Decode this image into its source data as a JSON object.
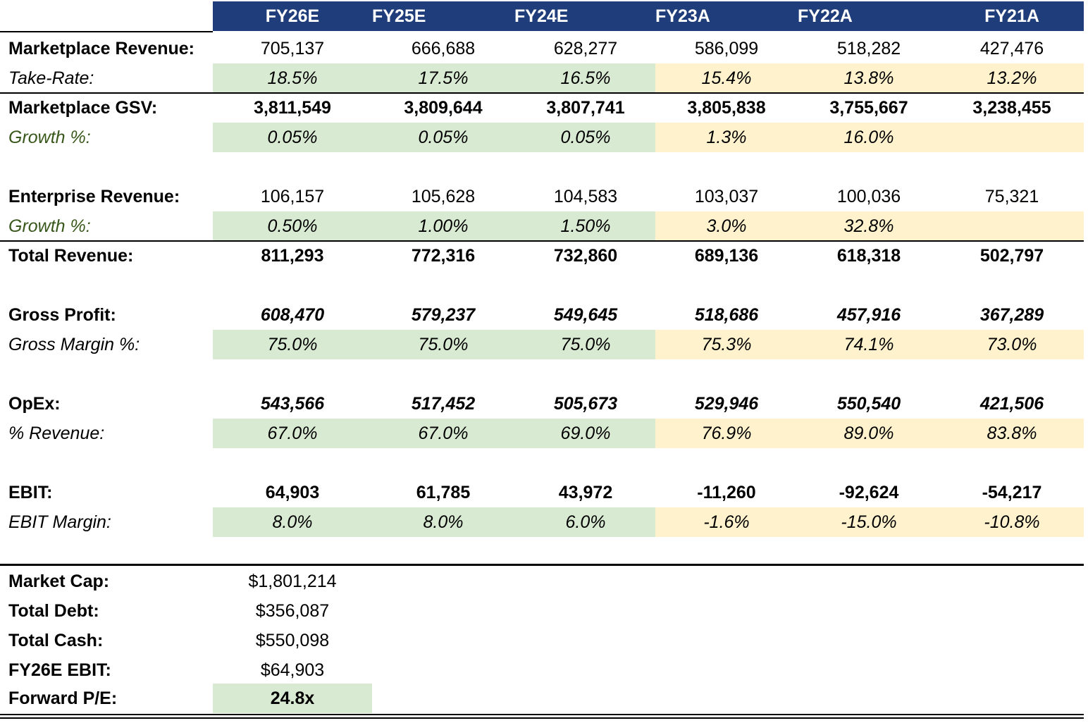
{
  "columns": [
    "FY26E",
    "FY25E",
    "FY24E",
    "FY23A",
    "FY22A",
    "FY21A"
  ],
  "rows": {
    "marketplace_revenue": {
      "label": "Marketplace Revenue:",
      "values": [
        "705,137",
        "666,688",
        "628,277",
        "586,099",
        "518,282",
        "427,476"
      ]
    },
    "take_rate": {
      "label": "Take-Rate:",
      "values": [
        "18.5%",
        "17.5%",
        "16.5%",
        "15.4%",
        "13.8%",
        "13.2%"
      ]
    },
    "marketplace_gsv": {
      "label": "Marketplace GSV:",
      "values": [
        "3,811,549",
        "3,809,644",
        "3,807,741",
        "3,805,838",
        "3,755,667",
        "3,238,455"
      ]
    },
    "gsv_growth": {
      "label": "Growth %:",
      "values": [
        "0.05%",
        "0.05%",
        "0.05%",
        "1.3%",
        "16.0%",
        ""
      ]
    },
    "enterprise_revenue": {
      "label": "Enterprise Revenue:",
      "values": [
        "106,157",
        "105,628",
        "104,583",
        "103,037",
        "100,036",
        "75,321"
      ]
    },
    "enterprise_growth": {
      "label": "Growth %:",
      "values": [
        "0.50%",
        "1.00%",
        "1.50%",
        "3.0%",
        "32.8%",
        ""
      ]
    },
    "total_revenue": {
      "label": "Total Revenue:",
      "values": [
        "811,293",
        "772,316",
        "732,860",
        "689,136",
        "618,318",
        "502,797"
      ]
    },
    "gross_profit": {
      "label": "Gross Profit:",
      "values": [
        "608,470",
        "579,237",
        "549,645",
        "518,686",
        "457,916",
        "367,289"
      ]
    },
    "gross_margin": {
      "label": "Gross Margin %:",
      "values": [
        "75.0%",
        "75.0%",
        "75.0%",
        "75.3%",
        "74.1%",
        "73.0%"
      ]
    },
    "opex": {
      "label": "OpEx:",
      "values": [
        "543,566",
        "517,452",
        "505,673",
        "529,946",
        "550,540",
        "421,506"
      ]
    },
    "opex_pct_revenue": {
      "label": "% Revenue:",
      "values": [
        "67.0%",
        "67.0%",
        "69.0%",
        "76.9%",
        "89.0%",
        "83.8%"
      ]
    },
    "ebit": {
      "label": "EBIT:",
      "values": [
        "64,903",
        "61,785",
        "43,972",
        "-11,260",
        "-92,624",
        "-54,217"
      ]
    },
    "ebit_margin": {
      "label": "EBIT Margin:",
      "values": [
        "8.0%",
        "8.0%",
        "6.0%",
        "-1.6%",
        "-15.0%",
        "-10.8%"
      ]
    }
  },
  "valuation": {
    "market_cap": {
      "label": "Market Cap:",
      "value": "$1,801,214"
    },
    "total_debt": {
      "label": "Total Debt:",
      "value": "$356,087"
    },
    "total_cash": {
      "label": "Total Cash:",
      "value": "$550,098"
    },
    "fy26e_ebit": {
      "label": "FY26E EBIT:",
      "value": "$64,903"
    },
    "forward_pe": {
      "label": "Forward P/E:",
      "value": "24.8x"
    }
  },
  "colors": {
    "header_bg": "#1f3d7a",
    "estimate_fill": "#d9ead3",
    "actual_fill": "#fff2cc",
    "growth_label_text": "#38571a"
  }
}
